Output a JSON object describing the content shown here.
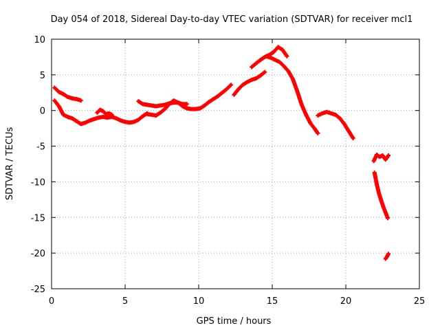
{
  "chart_data": {
    "type": "scatter",
    "title": "Day 054 of 2018, Sidereal Day-to-day VTEC variation (SDTVAR) for receiver mcl1",
    "xlabel": "GPS time / hours",
    "ylabel": "SDTVAR / TECUs",
    "xlim": [
      0,
      25
    ],
    "ylim": [
      -25,
      10
    ],
    "xticks": [
      0,
      5,
      10,
      15,
      20,
      25
    ],
    "yticks": [
      -25,
      -20,
      -15,
      -10,
      -5,
      0,
      5,
      10
    ],
    "grid": true,
    "marker": "+",
    "color": "#ff0000",
    "series": [
      {
        "name": "seg1",
        "x": [
          0.2,
          0.5,
          0.8,
          1.1,
          1.4,
          1.7,
          2.0
        ],
        "y": [
          3.2,
          2.6,
          2.3,
          1.9,
          1.7,
          1.6,
          1.4
        ]
      },
      {
        "name": "seg2",
        "x": [
          0.2,
          0.5,
          0.8,
          1.1,
          1.4,
          1.7,
          2.0,
          2.3,
          2.6,
          2.9,
          3.2,
          3.5,
          3.8,
          4.1,
          4.4,
          4.7,
          5.0,
          5.3,
          5.6,
          5.9,
          6.2,
          6.5
        ],
        "y": [
          1.4,
          0.6,
          -0.6,
          -0.9,
          -1.1,
          -1.5,
          -1.9,
          -1.7,
          -1.4,
          -1.2,
          -1.0,
          -0.9,
          -1.0,
          -0.9,
          -1.1,
          -1.4,
          -1.6,
          -1.7,
          -1.6,
          -1.3,
          -0.8,
          -0.4
        ]
      },
      {
        "name": "seg3",
        "x": [
          3.1,
          3.3,
          3.5,
          3.7,
          3.9,
          4.1
        ],
        "y": [
          -0.3,
          0.1,
          -0.1,
          -0.5,
          -0.4,
          -0.6
        ]
      },
      {
        "name": "seg4",
        "x": [
          5.9,
          6.2,
          6.5,
          6.8,
          7.1,
          7.4,
          7.7,
          8.0,
          8.3,
          8.6,
          8.9,
          9.2
        ],
        "y": [
          1.3,
          0.9,
          0.8,
          0.7,
          0.6,
          0.7,
          0.8,
          1.0,
          1.1,
          1.1,
          0.9,
          0.9
        ]
      },
      {
        "name": "seg5",
        "x": [
          6.5,
          6.8,
          7.1,
          7.4,
          7.7,
          8.0,
          8.3,
          8.6,
          8.9,
          9.2,
          9.5,
          9.8,
          10.1,
          10.4,
          10.7,
          11.0,
          11.3,
          11.6,
          11.9,
          12.2
        ],
        "y": [
          -0.5,
          -0.6,
          -0.7,
          -0.3,
          0.2,
          0.9,
          1.4,
          1.1,
          0.6,
          0.3,
          0.2,
          0.2,
          0.3,
          0.7,
          1.2,
          1.6,
          2.0,
          2.5,
          3.0,
          3.6
        ]
      },
      {
        "name": "seg6",
        "x": [
          12.4,
          12.7,
          13.0,
          13.3,
          13.6,
          13.9,
          14.2,
          14.5
        ],
        "y": [
          2.2,
          3.0,
          3.6,
          4.0,
          4.3,
          4.5,
          4.9,
          5.4
        ]
      },
      {
        "name": "seg7",
        "x": [
          13.6,
          13.9,
          14.2,
          14.5,
          14.8,
          15.1,
          15.4,
          15.7,
          16.0
        ],
        "y": [
          6.1,
          6.6,
          7.1,
          7.5,
          7.8,
          8.2,
          8.9,
          8.5,
          7.6
        ]
      },
      {
        "name": "seg8",
        "x": [
          14.6,
          14.9,
          15.2,
          15.5,
          15.8,
          16.1,
          16.4,
          16.7,
          17.0,
          17.3,
          17.6,
          17.9,
          18.1
        ],
        "y": [
          7.6,
          7.4,
          7.1,
          6.8,
          6.2,
          5.5,
          4.4,
          2.7,
          0.8,
          -0.6,
          -1.8,
          -2.6,
          -3.2
        ]
      },
      {
        "name": "seg9",
        "x": [
          18.1,
          18.4,
          18.7,
          19.0,
          19.3,
          19.6,
          19.9,
          20.2,
          20.5
        ],
        "y": [
          -0.7,
          -0.4,
          -0.2,
          -0.4,
          -0.6,
          -1.1,
          -1.9,
          -2.9,
          -3.9
        ]
      },
      {
        "name": "seg10",
        "x": [
          21.9,
          22.1,
          22.3,
          22.5,
          22.7,
          22.9
        ],
        "y": [
          -7.1,
          -6.2,
          -6.5,
          -6.3,
          -6.9,
          -6.3
        ]
      },
      {
        "name": "seg11",
        "x": [
          21.95,
          22.1,
          22.25,
          22.4,
          22.55,
          22.7,
          22.85
        ],
        "y": [
          -8.7,
          -10.3,
          -11.6,
          -12.6,
          -13.5,
          -14.3,
          -15.1
        ]
      },
      {
        "name": "seg12",
        "x": [
          22.7,
          22.8,
          22.9
        ],
        "y": [
          -20.8,
          -20.5,
          -20.1
        ]
      }
    ]
  }
}
